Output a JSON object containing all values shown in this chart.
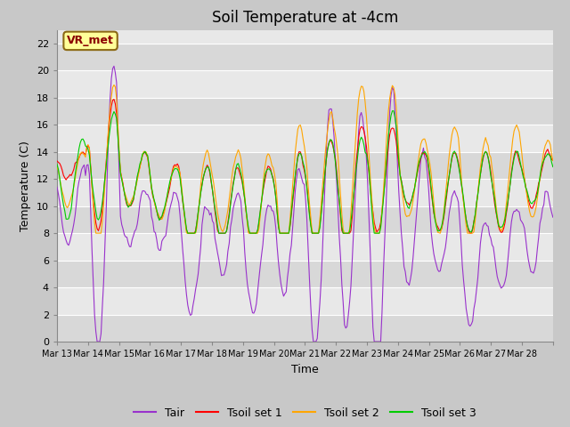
{
  "title": "Soil Temperature at -4cm",
  "xlabel": "Time",
  "ylabel": "Temperature (C)",
  "ylim": [
    0,
    23
  ],
  "yticks": [
    0,
    2,
    4,
    6,
    8,
    10,
    12,
    14,
    16,
    18,
    20,
    22
  ],
  "x_labels": [
    "Mar 13",
    "Mar 14",
    "Mar 15",
    "Mar 16",
    "Mar 17",
    "Mar 18",
    "Mar 19",
    "Mar 20",
    "Mar 21",
    "Mar 22",
    "Mar 23",
    "Mar 24",
    "Mar 25",
    "Mar 26",
    "Mar 27",
    "Mar 28"
  ],
  "annotation_text": "VR_met",
  "annotation_color": "#8B0000",
  "annotation_bg": "#FFFF99",
  "line_colors": {
    "Tair": "#9932CC",
    "Tsoil_set1": "#FF0000",
    "Tsoil_set2": "#FFA500",
    "Tsoil_set3": "#00CC00"
  },
  "legend_labels": [
    "Tair",
    "Tsoil set 1",
    "Tsoil set 2",
    "Tsoil set 3"
  ],
  "fig_bg": "#C8C8C8",
  "plot_bg": "#E8E8E8",
  "stripe_color": "#D8D8D8",
  "grid_color": "#FFFFFF",
  "title_fontsize": 12,
  "axis_fontsize": 9,
  "tick_fontsize": 8,
  "legend_fontsize": 9
}
